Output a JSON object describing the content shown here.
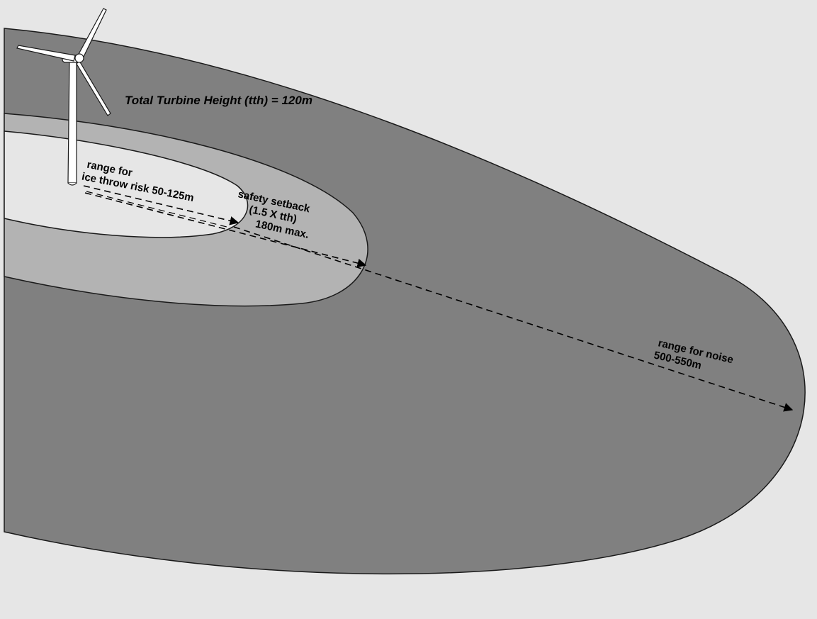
{
  "diagram": {
    "title": "Total Turbine Height (tth) = 120m",
    "zones": {
      "ice": {
        "line1": "range for",
        "line2": "ice throw risk 50-125m"
      },
      "safety": {
        "line1": "safety setback",
        "line2": "(1.5 X tth)",
        "line3": "180m max."
      },
      "noise": {
        "line1": "range for noise",
        "line2": "500-550m"
      }
    },
    "colors": {
      "background": "#e6e6e6",
      "noise_zone": "#808080",
      "safety_zone": "#b3b3b3",
      "ice_zone": "#e6e6e6",
      "turbine": "#ffffff"
    }
  }
}
